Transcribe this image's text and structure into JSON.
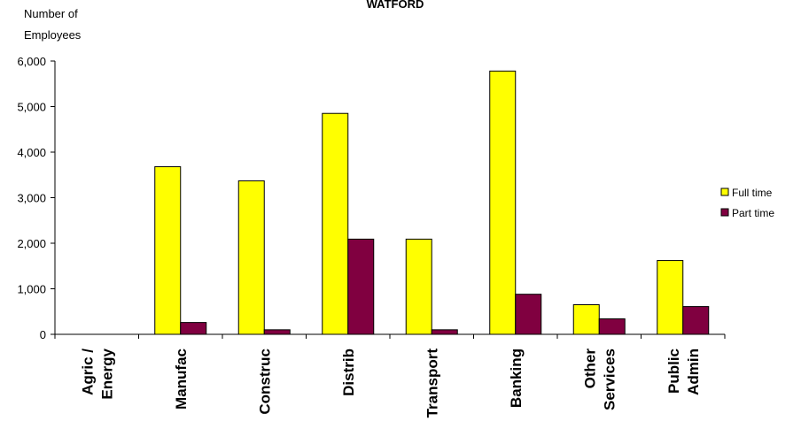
{
  "chart_data": {
    "type": "bar",
    "title": "WATFORD",
    "ylabel_lines": [
      "Number of",
      "Employees"
    ],
    "ylim": [
      0,
      6000
    ],
    "yticks": [
      {
        "value": 0,
        "label": "0"
      },
      {
        "value": 1000,
        "label": "1,000"
      },
      {
        "value": 2000,
        "label": "2,000"
      },
      {
        "value": 3000,
        "label": "3,000"
      },
      {
        "value": 4000,
        "label": "4,000"
      },
      {
        "value": 5000,
        "label": "5,000"
      },
      {
        "value": 6000,
        "label": "6,000"
      }
    ],
    "categories": [
      [
        "Agric /",
        "Energy"
      ],
      [
        "Manufac"
      ],
      [
        "Construc"
      ],
      [
        "Distrib"
      ],
      [
        "Transport"
      ],
      [
        "Banking"
      ],
      [
        "Other",
        "Services"
      ],
      [
        "Public",
        "Admin"
      ]
    ],
    "series": [
      {
        "name": "Full time",
        "color": "#ffff00",
        "values": [
          0,
          3680,
          3370,
          4850,
          2090,
          5780,
          650,
          1620
        ]
      },
      {
        "name": "Part time",
        "color": "#800040",
        "values": [
          0,
          260,
          100,
          2090,
          100,
          880,
          340,
          610
        ]
      }
    ],
    "legend_position": "right",
    "grid": false
  }
}
